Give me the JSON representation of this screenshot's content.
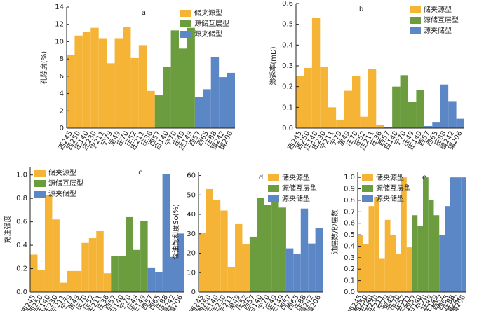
{
  "chart_data": [
    {
      "type": "bar",
      "label": "a",
      "ylabel": "孔隙度(%)",
      "ylim": [
        0,
        14
      ],
      "yticks": [
        0,
        2,
        4,
        6,
        8,
        10,
        12,
        14
      ],
      "legend": "upper right",
      "categories": [
        "西245",
        "西250",
        "庄140",
        "庄230",
        "宁211",
        "宁79",
        "里49",
        "庄70",
        "庄52",
        "庄211",
        "庄36",
        "西57",
        "白140",
        "宁70",
        "庄49",
        "庄149",
        "西57",
        "西65",
        "庄88",
        "镇242",
        "镇206"
      ],
      "series": [
        {
          "name": "储夹源型",
          "color": "#f6b436",
          "values": [
            8.5,
            10.7,
            11.1,
            11.6,
            10.4,
            7.5,
            10.4,
            11.7,
            8.1,
            9.6,
            4.3,
            null,
            null,
            null,
            null,
            null,
            null,
            null,
            null,
            null,
            null
          ]
        },
        {
          "name": "源储互层型",
          "color": "#6b9c3e",
          "values": [
            null,
            null,
            null,
            null,
            null,
            null,
            null,
            null,
            null,
            null,
            null,
            3.8,
            7.1,
            11.3,
            9.2,
            11.6,
            null,
            null,
            null,
            null,
            null
          ]
        },
        {
          "name": "源夹储型",
          "color": "#5b87c6",
          "values": [
            null,
            null,
            null,
            null,
            null,
            null,
            null,
            null,
            null,
            null,
            null,
            null,
            null,
            null,
            null,
            null,
            3.6,
            4.5,
            8.2,
            5.9,
            6.4
          ]
        }
      ]
    },
    {
      "type": "bar",
      "label": "b",
      "ylabel": "渗透率(mD)",
      "ylim": [
        0,
        0.6
      ],
      "yticks": [
        {
          "value": 0,
          "label": "0.0"
        },
        0.1,
        0.2,
        0.3,
        0.4,
        0.5,
        0.6
      ],
      "legend": "upper right",
      "categories": [
        "西245",
        "西250",
        "庄140",
        "庄230",
        "宁211",
        "宁79",
        "里49",
        "庄70",
        "庄52",
        "庄211",
        "庄36",
        "西57",
        "白140",
        "宁70",
        "庄49",
        "庄149",
        "西57",
        "西65",
        "庄88",
        "镇242",
        "镇206"
      ],
      "series": [
        {
          "name": "储夹源型",
          "color": "#f6b436",
          "values": [
            0.25,
            0.29,
            0.53,
            0.295,
            0.1,
            0.04,
            0.18,
            0.25,
            0.055,
            0.285,
            0.015,
            null,
            null,
            null,
            null,
            null,
            null,
            null,
            null,
            null,
            null
          ]
        },
        {
          "name": "源储互层型",
          "color": "#6b9c3e",
          "values": [
            null,
            null,
            null,
            null,
            null,
            null,
            null,
            null,
            null,
            null,
            null,
            0.005,
            0.2,
            0.255,
            0.125,
            0.185,
            null,
            null,
            null,
            null,
            null
          ]
        },
        {
          "name": "源夹储型",
          "color": "#5b87c6",
          "values": [
            null,
            null,
            null,
            null,
            null,
            null,
            null,
            null,
            null,
            null,
            null,
            null,
            null,
            null,
            null,
            null,
            0.01,
            0.03,
            0.21,
            0.13,
            0.045
          ]
        }
      ]
    },
    {
      "type": "bar",
      "label": "c",
      "ylabel": "充注强度",
      "ylim": [
        0,
        1.07
      ],
      "yticks": [
        {
          "value": 0,
          "label": "0.0"
        },
        0.2,
        0.4,
        0.6,
        0.8,
        {
          "value": 1,
          "label": "1.0"
        }
      ],
      "legend": "upper left",
      "categories": [
        "西245",
        "西250",
        "庄140",
        "庄230",
        "宁211",
        "宁79",
        "里49",
        "庄70",
        "庄52",
        "庄211",
        "庄36",
        "西57",
        "白140",
        "宁70",
        "庄49",
        "庄149",
        "西57",
        "西65",
        "庄88",
        "镇242",
        "镇206"
      ],
      "series": [
        {
          "name": "储夹源型",
          "color": "#f6b436",
          "values": [
            0.32,
            0.19,
            0.83,
            0.62,
            0.08,
            0.18,
            0.18,
            0.42,
            0.46,
            0.52,
            0.16,
            null,
            null,
            null,
            null,
            null,
            null,
            null,
            null,
            null,
            null
          ]
        },
        {
          "name": "源储互层型",
          "color": "#6b9c3e",
          "values": [
            null,
            null,
            null,
            null,
            null,
            null,
            null,
            null,
            null,
            null,
            null,
            0.31,
            0.31,
            0.64,
            0.36,
            0.61,
            null,
            null,
            null,
            null,
            null
          ]
        },
        {
          "name": "源夹储型",
          "color": "#5b87c6",
          "values": [
            null,
            null,
            null,
            null,
            null,
            null,
            null,
            null,
            null,
            null,
            null,
            null,
            null,
            null,
            null,
            null,
            0.21,
            0.17,
            1.01,
            0.3,
            0.5
          ]
        }
      ]
    },
    {
      "type": "bar",
      "label": "d",
      "ylabel": "含油饱和度So(%)",
      "ylim": [
        0,
        62
      ],
      "yticks": [
        0,
        10,
        20,
        30,
        40,
        50,
        60
      ],
      "legend": "upper right",
      "categories": [
        "西245",
        "西250",
        "庄140",
        "庄230",
        "宁211",
        "里49",
        "庄52",
        "西57",
        "白140",
        "宁70",
        "庄49",
        "庄149",
        "西57",
        "西65",
        "庄88",
        "镇242",
        "镇206"
      ],
      "series": [
        {
          "name": "储夹源型",
          "color": "#f6b436",
          "values": [
            30.5,
            53,
            47.5,
            42,
            13,
            35,
            24.5,
            null,
            null,
            null,
            null,
            null,
            null,
            null,
            null,
            null,
            null
          ]
        },
        {
          "name": "源储互层型",
          "color": "#6b9c3e",
          "values": [
            null,
            null,
            null,
            null,
            null,
            null,
            null,
            28.5,
            48.5,
            45,
            47,
            43.5,
            null,
            null,
            null,
            null,
            null
          ]
        },
        {
          "name": "源夹储型",
          "color": "#5b87c6",
          "values": [
            null,
            null,
            null,
            null,
            null,
            null,
            null,
            null,
            null,
            null,
            null,
            null,
            22.5,
            19.5,
            43,
            25,
            33
          ]
        }
      ]
    },
    {
      "type": "bar",
      "label": "e",
      "ylabel": "油层数/砂层数",
      "ylim": [
        0,
        1.05
      ],
      "yticks": [
        {
          "value": 0,
          "label": "0.0"
        },
        0.1,
        0.2,
        0.3,
        0.4,
        0.5,
        0.6,
        0.7,
        0.8,
        0.9,
        {
          "value": 1,
          "label": "1.0"
        }
      ],
      "legend": "upper left",
      "categories": [
        "西245",
        "西250",
        "庄140",
        "庄230",
        "宁211",
        "宁79",
        "里49",
        "庄70",
        "庄52",
        "庄211",
        "西57",
        "白140",
        "宁70",
        "庄49",
        "庄149",
        "西57",
        "西65",
        "庄88",
        "镇242",
        "镇206"
      ],
      "series": [
        {
          "name": "储夹源型",
          "color": "#f6b436",
          "values": [
            0.5,
            0.42,
            0.75,
            0.83,
            0.29,
            0.63,
            0.5,
            0.33,
            1.0,
            0.39,
            null,
            null,
            null,
            null,
            null,
            null,
            null,
            null,
            null,
            null
          ]
        },
        {
          "name": "源储互层型",
          "color": "#6b9c3e",
          "values": [
            null,
            null,
            null,
            null,
            null,
            null,
            null,
            null,
            null,
            null,
            0.67,
            0.58,
            1.0,
            0.8,
            0.67,
            null,
            null,
            null,
            null,
            null
          ]
        },
        {
          "name": "源夹储型",
          "color": "#5b87c6",
          "values": [
            null,
            null,
            null,
            null,
            null,
            null,
            null,
            null,
            null,
            null,
            null,
            null,
            null,
            null,
            null,
            0.5,
            0.75,
            1.0,
            1.0,
            1.0
          ]
        }
      ]
    }
  ]
}
